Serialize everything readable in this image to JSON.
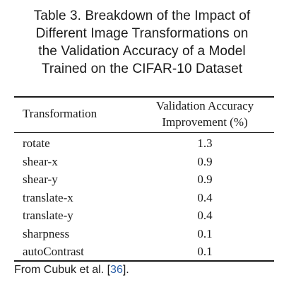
{
  "caption": {
    "lines": [
      "Table 3.  Breakdown of the Impact of",
      "Different Image Transformations on",
      "the Validation Accuracy of a Model",
      "Trained on the CIFAR-10 Dataset"
    ]
  },
  "table": {
    "headers": {
      "transformation": "Transformation",
      "improvement_line1": "Validation Accuracy",
      "improvement_line2": "Improvement (%)"
    },
    "rows": [
      {
        "transformation": "rotate",
        "improvement": "1.3"
      },
      {
        "transformation": "shear-x",
        "improvement": "0.9"
      },
      {
        "transformation": "shear-y",
        "improvement": "0.9"
      },
      {
        "transformation": "translate-x",
        "improvement": "0.4"
      },
      {
        "transformation": "translate-y",
        "improvement": "0.4"
      },
      {
        "transformation": "sharpness",
        "improvement": "0.1"
      },
      {
        "transformation": "autoContrast",
        "improvement": "0.1"
      }
    ]
  },
  "source": {
    "prefix": "From Cubuk et al. [",
    "reference": "36",
    "suffix": "].",
    "reference_color": "#2b5fa8"
  }
}
